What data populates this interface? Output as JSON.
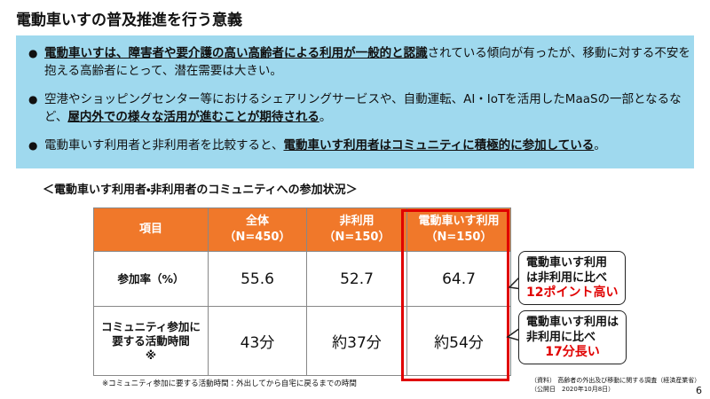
{
  "title": "電動車いすの普及推進を行う意義",
  "bullets": [
    {
      "segments": [
        {
          "text": "電動車いすは、障害者や要介護の高い高齢者による利用が一般的と認識",
          "emphasis": true
        },
        {
          "text": "されている傾向が有ったが、移動に対する不安を抱える高齢者にとって、潜在需要は大きい。",
          "emphasis": false
        }
      ]
    },
    {
      "segments": [
        {
          "text": "空港やショッピングセンター等におけるシェアリングサービスや、自動運転、AI・IoTを活用したMaaSの一部となるなど、",
          "emphasis": false
        },
        {
          "text": "屋内外での様々な活用が進むことが期待される",
          "emphasis": true
        },
        {
          "text": "。",
          "emphasis": false
        }
      ]
    },
    {
      "segments": [
        {
          "text": "電動車いす利用者と非利用者を比較すると、",
          "emphasis": false
        },
        {
          "text": "電動車いす利用者はコミュニティに積極的に参加している",
          "emphasis": true
        },
        {
          "text": "。",
          "emphasis": false
        }
      ]
    }
  ],
  "table": {
    "caption": "＜電動車いす利用者・非利用者のコミュニティへの参加状況＞",
    "header": [
      {
        "label": "項目"
      },
      {
        "label": "全体",
        "sub": "（N=450）"
      },
      {
        "label": "非利用",
        "sub": "（N=150）"
      },
      {
        "label": "電動車いす利用",
        "sub": "（N=150）"
      }
    ],
    "rows": [
      {
        "label": [
          "参加率（%）"
        ],
        "cells": [
          "55.6",
          "52.7",
          "64.7"
        ]
      },
      {
        "label": [
          "コミュニティ参加に",
          "要する活動時間",
          "※"
        ],
        "cells": [
          "43分",
          "約37分",
          "約54分"
        ]
      }
    ]
  },
  "callouts": [
    {
      "lines": [
        "電動車いす利用",
        "は非利用に比べ"
      ],
      "highlight": "12ポイント高い"
    },
    {
      "lines": [
        "電動車いす利用は",
        "非利用に比べ"
      ],
      "highlight": "17分長い"
    }
  ],
  "footnote": "※コミュニティ参加に要する活動時間：外出してから自宅に戻るまでの時間",
  "source": [
    "（資料） 高齢者の外出及び移動に関する調査（経済産業省）",
    "（公開日　2020年10月8日）"
  ],
  "page_number": "6"
}
